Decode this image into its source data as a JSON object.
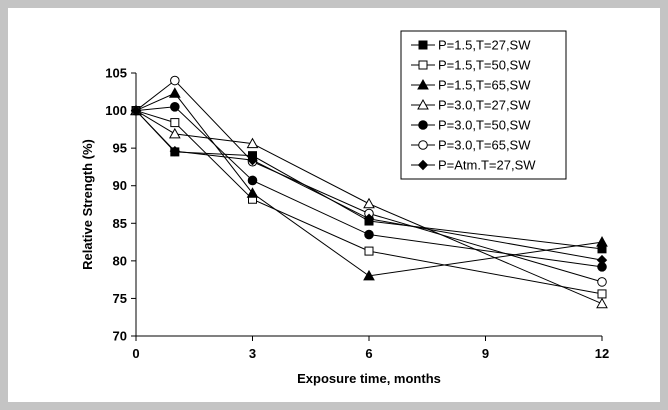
{
  "chart_data": {
    "type": "line",
    "title": "",
    "xlabel": "Exposure time, months",
    "ylabel": "Relative Strength (%)",
    "xlim": [
      0,
      12
    ],
    "ylim": [
      70,
      105
    ],
    "xticks": [
      0,
      3,
      6,
      9,
      12
    ],
    "yticks": [
      70,
      75,
      80,
      85,
      90,
      95,
      100,
      105
    ],
    "x_tick_labels": [
      "0",
      "3",
      "6",
      "9",
      "12"
    ],
    "y_tick_labels": [
      "70",
      "75",
      "80",
      "85",
      "90",
      "95",
      "100",
      "105"
    ],
    "grid": false,
    "legend_position": "top-right",
    "series": [
      {
        "name": "P=1.5,T=27,SW",
        "marker": "square-filled",
        "x": [
          0,
          1,
          3,
          6,
          12
        ],
        "y": [
          100,
          94.5,
          94,
          85.3,
          81.6
        ]
      },
      {
        "name": "P=1.5,T=50,SW",
        "marker": "square-open",
        "x": [
          0,
          1,
          3,
          6,
          12
        ],
        "y": [
          100,
          98.4,
          88.2,
          81.3,
          75.6
        ]
      },
      {
        "name": "P=1.5,T=65,SW",
        "marker": "triangle-filled",
        "x": [
          0,
          1,
          3,
          6,
          12
        ],
        "y": [
          100,
          102.3,
          89,
          78,
          82.5
        ]
      },
      {
        "name": "P=3.0,T=27,SW",
        "marker": "triangle-open",
        "x": [
          0,
          1,
          3,
          6,
          12
        ],
        "y": [
          100,
          96.9,
          95.6,
          87.6,
          74.3
        ]
      },
      {
        "name": "P=3.0,T=50,SW",
        "marker": "circle-filled",
        "x": [
          0,
          1,
          3,
          6,
          12
        ],
        "y": [
          100,
          100.5,
          90.7,
          83.5,
          79.2
        ]
      },
      {
        "name": "P=3.0,T=65,SW",
        "marker": "circle-open",
        "x": [
          0,
          1,
          3,
          6,
          12
        ],
        "y": [
          100,
          104,
          93.2,
          86.3,
          77.2
        ]
      },
      {
        "name": "P=Atm.T=27,SW",
        "marker": "diamond-filled",
        "x": [
          0,
          1,
          3,
          6,
          12
        ],
        "y": [
          100,
          94.6,
          93.4,
          85.6,
          80.1
        ]
      }
    ]
  }
}
